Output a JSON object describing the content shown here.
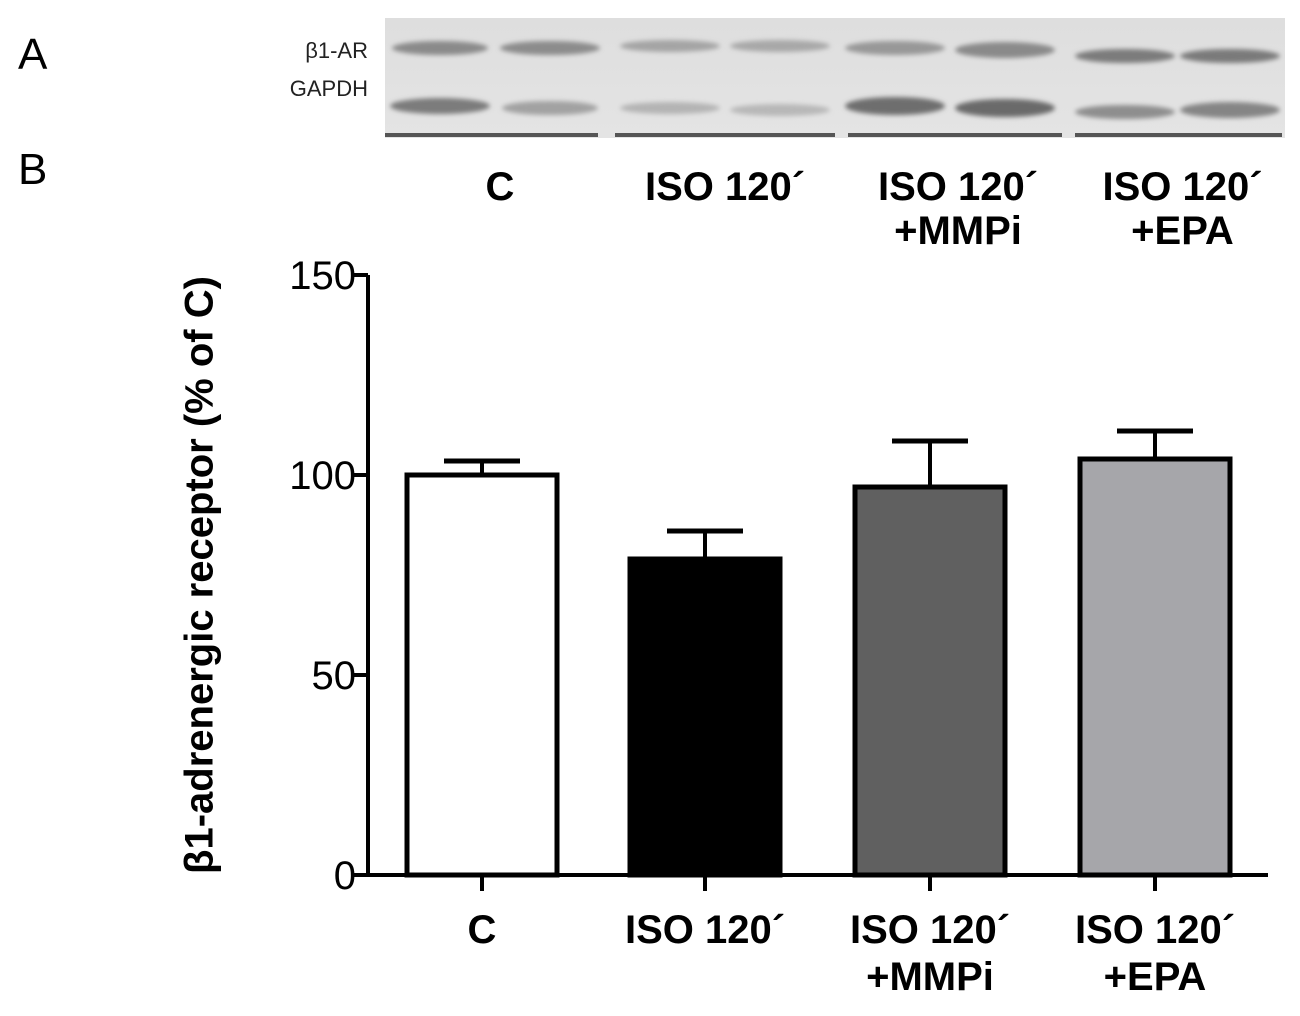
{
  "panels": {
    "a": "A",
    "b": "B"
  },
  "blot": {
    "row_labels": [
      "β1-AR",
      "GAPDH"
    ],
    "groups": [
      {
        "line1": "C",
        "line2": ""
      },
      {
        "line1": "ISO 120´",
        "line2": ""
      },
      {
        "line1": "ISO 120´",
        "line2": "+MMPi"
      },
      {
        "line1": "ISO 120´",
        "line2": "+EPA"
      }
    ]
  },
  "chart_data": {
    "type": "bar",
    "ylabel": "β1-adrenergic receptor  (% of C)",
    "xlabel": "",
    "ylim": [
      0,
      150
    ],
    "yticks": [
      0,
      50,
      100,
      150
    ],
    "categories": [
      {
        "line1": "C",
        "line2": ""
      },
      {
        "line1": "ISO 120´",
        "line2": ""
      },
      {
        "line1": "ISO 120´",
        "line2": "+MMPi"
      },
      {
        "line1": "ISO 120´",
        "line2": "+EPA"
      }
    ],
    "values": [
      100,
      79,
      97,
      104
    ],
    "errors": [
      3.5,
      7,
      11.5,
      7
    ],
    "colors": [
      "#ffffff",
      "#000000",
      "#606060",
      "#a6a6aa"
    ]
  }
}
